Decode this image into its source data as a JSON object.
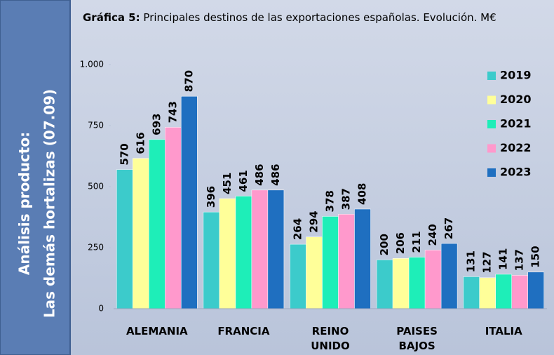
{
  "side_panel": {
    "line1": "Análisis producto:",
    "line2": "Las demás hortalizas (07.09)"
  },
  "chart_data": {
    "type": "bar",
    "title_prefix": "Gráfica 5:",
    "title": "Principales destinos de las exportaciones españolas. Evolución. M€",
    "categories": [
      "ALEMANIA",
      "FRANCIA",
      "REINO UNIDO",
      "PAISES BAJOS",
      "ITALIA"
    ],
    "series": [
      {
        "name": "2019",
        "color": "#3ccbcb",
        "values": [
          570,
          396,
          264,
          200,
          131
        ]
      },
      {
        "name": "2020",
        "color": "#ffff99",
        "values": [
          616,
          451,
          294,
          206,
          127
        ]
      },
      {
        "name": "2021",
        "color": "#1eeeb8",
        "values": [
          693,
          461,
          378,
          211,
          141
        ]
      },
      {
        "name": "2022",
        "color": "#ff99cc",
        "values": [
          743,
          486,
          387,
          240,
          137
        ]
      },
      {
        "name": "2023",
        "color": "#1f6fc0",
        "values": [
          870,
          486,
          408,
          267,
          150
        ]
      }
    ],
    "ylim": [
      0,
      1000
    ],
    "yticks": [
      0,
      250,
      500,
      750,
      {
        "value": 1000,
        "label": "1.000"
      }
    ],
    "legend": "right"
  }
}
